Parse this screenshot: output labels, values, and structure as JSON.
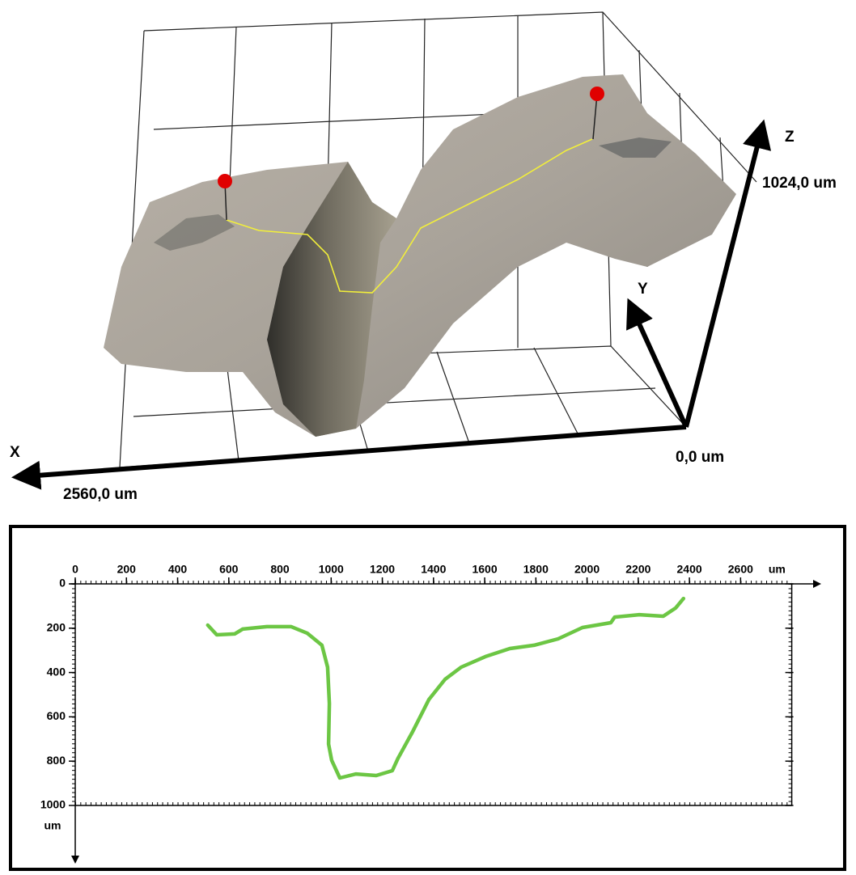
{
  "surface_view": {
    "x_axis_label": "X",
    "y_axis_label": "Y",
    "z_axis_label": "Z",
    "origin_label": "0,0 um",
    "x_extent_label": "2560,0 um",
    "z_extent_label": "1024,0 um"
  },
  "chart_data": {
    "type": "line",
    "x_unit": "um",
    "y_unit": "um",
    "x_axis_position": "top",
    "y_inverted": true,
    "color": "#6cc644",
    "xlim": [
      0,
      2800
    ],
    "ylim": [
      0,
      1000
    ],
    "xticks": [
      0,
      200,
      400,
      600,
      800,
      1000,
      1200,
      1400,
      1600,
      1800,
      2000,
      2200,
      2400,
      2600
    ],
    "yticks": [
      0,
      200,
      400,
      600,
      800,
      1000
    ],
    "x": [
      518,
      553,
      623,
      654,
      749,
      844,
      907,
      964,
      986,
      993,
      990,
      1002,
      1034,
      1097,
      1176,
      1239,
      1261,
      1318,
      1382,
      1445,
      1508,
      1603,
      1698,
      1793,
      1887,
      1982,
      2093,
      2108,
      2204,
      2298,
      2346,
      2377
    ],
    "values": [
      186,
      230,
      226,
      204,
      193,
      193,
      223,
      277,
      376,
      540,
      723,
      796,
      876,
      858,
      865,
      843,
      788,
      668,
      522,
      431,
      376,
      328,
      292,
      277,
      248,
      197,
      175,
      150,
      139,
      146,
      109,
      66
    ]
  }
}
